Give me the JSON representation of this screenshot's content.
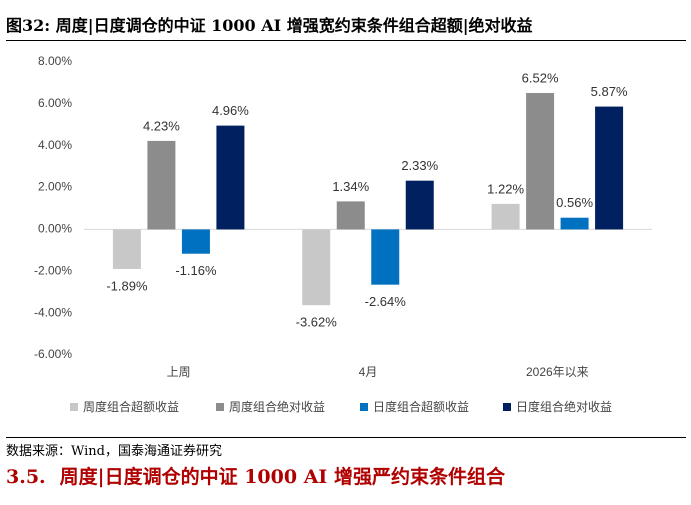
{
  "chart_data": {
    "type": "bar",
    "title": "图32: 周度|日度调仓的中证 1000 AI 增强宽约束条件组合超额|绝对收益",
    "categories": [
      "上周",
      "4月",
      "2026年以来"
    ],
    "series": [
      {
        "name": "周度组合超额收益",
        "color": "#c8c8c8",
        "values": [
          -1.89,
          -3.62,
          1.22
        ],
        "value_labels": [
          "-1.89%",
          "-3.62%",
          "1.22%"
        ]
      },
      {
        "name": "周度组合绝对收益",
        "color": "#8c8c8c",
        "values": [
          4.23,
          1.34,
          6.52
        ],
        "value_labels": [
          "4.23%",
          "1.34%",
          "6.52%"
        ]
      },
      {
        "name": "日度组合超额收益",
        "color": "#0070c0",
        "values": [
          -1.16,
          -2.64,
          0.56
        ],
        "value_labels": [
          "-1.16%",
          "-2.64%",
          "0.56%"
        ]
      },
      {
        "name": "日度组合绝对收益",
        "color": "#002060",
        "values": [
          4.96,
          2.33,
          5.87
        ],
        "value_labels": [
          "4.96%",
          "2.33%",
          "5.87%"
        ]
      }
    ],
    "ylim": [
      -6,
      8
    ],
    "yticks": [
      {
        "value": -6,
        "label": "-6.00%"
      },
      {
        "value": -4,
        "label": "-4.00%"
      },
      {
        "value": -2,
        "label": "-2.00%"
      },
      {
        "value": 0,
        "label": "0.00%"
      },
      {
        "value": 2,
        "label": "2.00%"
      },
      {
        "value": 4,
        "label": "4.00%"
      },
      {
        "value": 6,
        "label": "6.00%"
      },
      {
        "value": 8,
        "label": "8.00%"
      }
    ],
    "grid": false,
    "legend": "bottom"
  },
  "source": "数据来源：Wind，国泰海通证券研究",
  "section": {
    "number": "3.5.",
    "title": "周度|日度调仓的中证 1000 AI 增强严约束条件组合"
  }
}
